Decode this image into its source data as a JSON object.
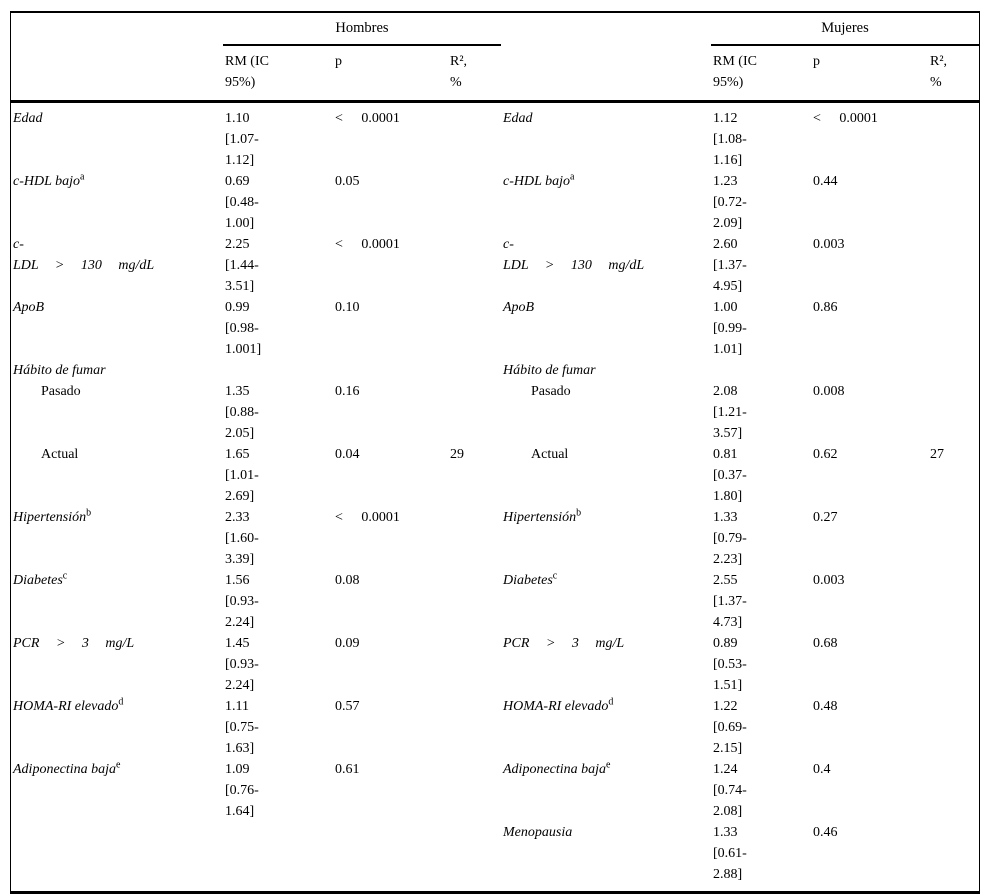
{
  "header": {
    "groups": [
      "Hombres",
      "Mujeres"
    ],
    "sub_rm": "RM (IC\n95%)",
    "sub_p": "p",
    "sub_r2": "R²,\n%"
  },
  "rows": [
    {
      "indent": false,
      "italic": true,
      "justify": false,
      "sup": "",
      "left": {
        "label": "Edad",
        "rm": "1.10\n[1.07-\n1.12]",
        "p": "< 0.0001",
        "r2": ""
      },
      "right": {
        "label": "Edad",
        "rm": "1.12\n[1.08-\n1.16]",
        "p": "< 0.0001",
        "r2": ""
      }
    },
    {
      "indent": false,
      "italic": true,
      "justify": false,
      "sup": "a",
      "left": {
        "label": "c-HDL bajo",
        "rm": "0.69\n[0.48-\n1.00]",
        "p": "0.05",
        "r2": ""
      },
      "right": {
        "label": "c-HDL bajo",
        "rm": "1.23\n[0.72-\n2.09]",
        "p": "0.44",
        "r2": ""
      }
    },
    {
      "indent": false,
      "italic": true,
      "justify": true,
      "sup": "",
      "left": {
        "label": "c-\nLDL > 130 mg/dL",
        "rm": "2.25\n[1.44-\n3.51]",
        "p": "< 0.0001",
        "r2": ""
      },
      "right": {
        "label": "c-\nLDL > 130 mg/dL",
        "rm": "2.60\n[1.37-\n4.95]",
        "p": "0.003",
        "r2": ""
      }
    },
    {
      "indent": false,
      "italic": true,
      "justify": false,
      "sup": "",
      "left": {
        "label": "ApoB",
        "rm": "0.99\n[0.98-\n1.001]",
        "p": "0.10",
        "r2": ""
      },
      "right": {
        "label": "ApoB",
        "rm": "1.00\n[0.99-\n1.01]",
        "p": "0.86",
        "r2": ""
      }
    },
    {
      "indent": false,
      "italic": true,
      "justify": false,
      "sup": "",
      "left": {
        "label": "Hábito de fumar",
        "rm": "",
        "p": "",
        "r2": ""
      },
      "right": {
        "label": "Hábito de fumar",
        "rm": "",
        "p": "",
        "r2": ""
      }
    },
    {
      "indent": true,
      "italic": false,
      "justify": false,
      "sup": "",
      "left": {
        "label": "Pasado",
        "rm": "1.35\n[0.88-\n2.05]",
        "p": "0.16",
        "r2": ""
      },
      "right": {
        "label": "Pasado",
        "rm": "2.08\n[1.21-\n3.57]",
        "p": "0.008",
        "r2": ""
      }
    },
    {
      "indent": true,
      "italic": false,
      "justify": false,
      "sup": "",
      "left": {
        "label": "Actual",
        "rm": "1.65\n[1.01-\n2.69]",
        "p": "0.04",
        "r2": "29"
      },
      "right": {
        "label": "Actual",
        "rm": "0.81\n[0.37-\n1.80]",
        "p": "0.62",
        "r2": "27"
      }
    },
    {
      "indent": false,
      "italic": true,
      "justify": false,
      "sup": "b",
      "left": {
        "label": "Hipertensión",
        "rm": "2.33\n[1.60-\n3.39]",
        "p": "< 0.0001",
        "r2": ""
      },
      "right": {
        "label": "Hipertensión",
        "rm": "1.33\n[0.79-\n2.23]",
        "p": "0.27",
        "r2": ""
      }
    },
    {
      "indent": false,
      "italic": true,
      "justify": false,
      "sup": "c",
      "left": {
        "label": "Diabetes",
        "rm": "1.56\n[0.93-\n2.24]",
        "p": "0.08",
        "r2": ""
      },
      "right": {
        "label": "Diabetes",
        "rm": "2.55\n[1.37-\n4.73]",
        "p": "0.003",
        "r2": ""
      }
    },
    {
      "indent": false,
      "italic": true,
      "justify": true,
      "sup": "",
      "left": {
        "label": "PCR > 3 mg/L",
        "rm": "1.45\n[0.93-\n2.24]",
        "p": "0.09",
        "r2": ""
      },
      "right": {
        "label": "PCR > 3 mg/L",
        "rm": "0.89\n[0.53-\n1.51]",
        "p": "0.68",
        "r2": ""
      }
    },
    {
      "indent": false,
      "italic": true,
      "justify": false,
      "sup": "d",
      "left": {
        "label": "HOMA-RI elevado",
        "rm": "1.11\n[0.75-\n1.63]",
        "p": "0.57",
        "r2": ""
      },
      "right": {
        "label": "HOMA-RI elevado",
        "rm": "1.22\n[0.69-\n2.15]",
        "p": "0.48",
        "r2": ""
      }
    },
    {
      "indent": false,
      "italic": true,
      "justify": false,
      "sup": "e",
      "left": {
        "label": "Adiponectina baja",
        "rm": "1.09\n[0.76-\n1.64]",
        "p": "0.61",
        "r2": ""
      },
      "right": {
        "label": "Adiponectina baja",
        "rm": "1.24\n[0.74-\n2.08]",
        "p": "0.4",
        "r2": ""
      }
    },
    {
      "indent": false,
      "italic": true,
      "justify": false,
      "sup": "",
      "left": {
        "label": "",
        "rm": "",
        "p": "",
        "r2": ""
      },
      "right": {
        "label": "Menopausia",
        "rm": "1.33\n[0.61-\n2.88]",
        "p": "0.46",
        "r2": ""
      }
    }
  ],
  "colors": {
    "text": "#000000",
    "rule": "#000000",
    "background": "#ffffff"
  }
}
